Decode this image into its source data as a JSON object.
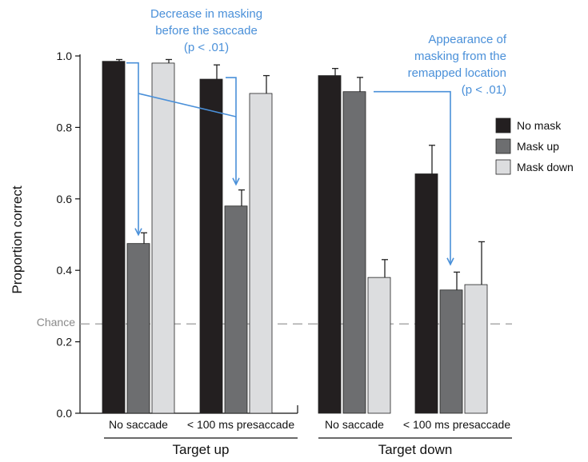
{
  "chart_data": {
    "type": "bar",
    "ylabel": "Proportion correct",
    "ylim": [
      0,
      1.0
    ],
    "yticks": [
      "0.0",
      "0.2",
      "0.4",
      "0.6",
      "0.8",
      "1.0"
    ],
    "chance": {
      "label": "Chance",
      "value": 0.25
    },
    "groups": [
      {
        "label": "Target up",
        "conditions": [
          "No saccade",
          "< 100 ms presaccade"
        ]
      },
      {
        "label": "Target down",
        "conditions": [
          "No saccade",
          "< 100 ms presaccade"
        ]
      }
    ],
    "categories": [
      "No saccade",
      "< 100 ms presaccade",
      "No saccade",
      "< 100 ms presaccade"
    ],
    "series": [
      {
        "name": "No mask",
        "color": "#231f20",
        "values": [
          0.985,
          0.935,
          0.945,
          0.67
        ],
        "errors": [
          0.005,
          0.04,
          0.02,
          0.08
        ]
      },
      {
        "name": "Mask up",
        "color": "#6d6e70",
        "values": [
          0.475,
          0.58,
          0.9,
          0.345
        ],
        "errors": [
          0.03,
          0.045,
          0.04,
          0.05
        ]
      },
      {
        "name": "Mask down",
        "color": "#dcdddf",
        "values": [
          0.98,
          0.895,
          0.38,
          0.36
        ],
        "errors": [
          0.01,
          0.05,
          0.05,
          0.12
        ]
      }
    ],
    "annotations": [
      {
        "lines": [
          "Decrease in masking",
          "before the saccade",
          "(p < .01)"
        ],
        "color": "#4a90d9"
      },
      {
        "lines": [
          "Appearance of",
          "masking from the",
          "remapped location",
          "(p < .01)"
        ],
        "color": "#4a90d9"
      }
    ]
  }
}
